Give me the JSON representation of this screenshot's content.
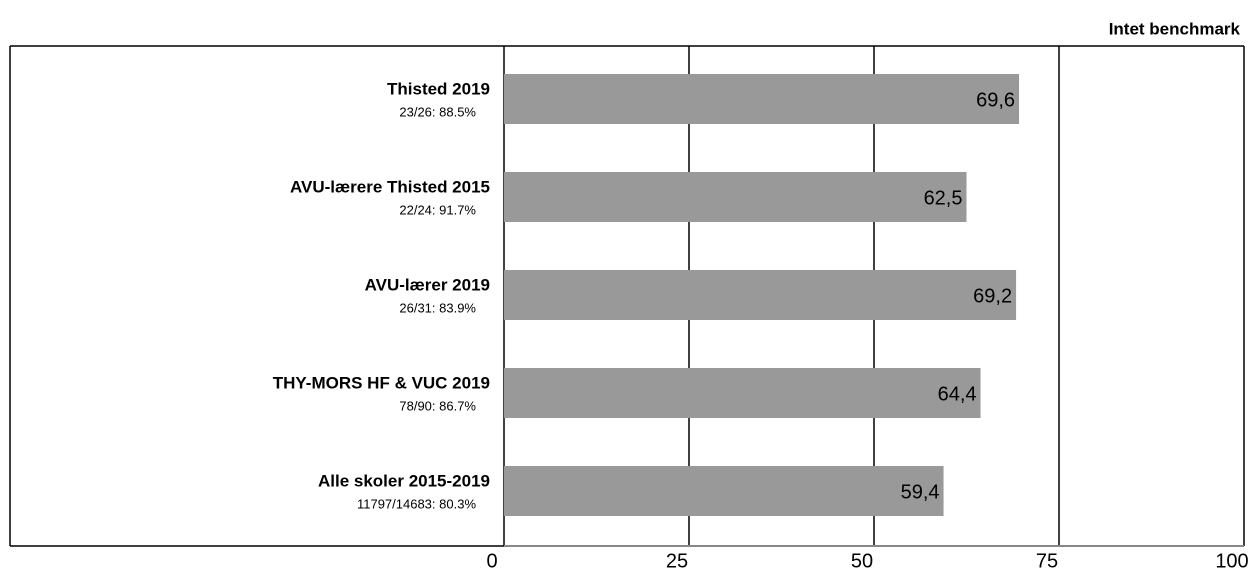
{
  "chart_data": {
    "type": "barh",
    "annotation": "Intet benchmark",
    "categories": [
      "Thisted 2019",
      "AVU-lærere Thisted 2015",
      "AVU-lærer 2019",
      "THY-MORS HF & VUC 2019",
      "Alle skoler 2015-2019"
    ],
    "category_notes": [
      "23/26: 88.5%",
      "22/24: 91.7%",
      "26/31: 83.9%",
      "78/90: 86.7%",
      "11797/14683: 80.3%"
    ],
    "values": [
      69.6,
      62.5,
      69.2,
      64.4,
      59.4
    ],
    "value_labels": [
      "69,6",
      "62,5",
      "69,2",
      "64,4",
      "59,4"
    ],
    "color": "#999999",
    "xlim": [
      0,
      100
    ],
    "xticks": [
      0,
      25,
      50,
      75,
      100
    ],
    "grid": true
  }
}
